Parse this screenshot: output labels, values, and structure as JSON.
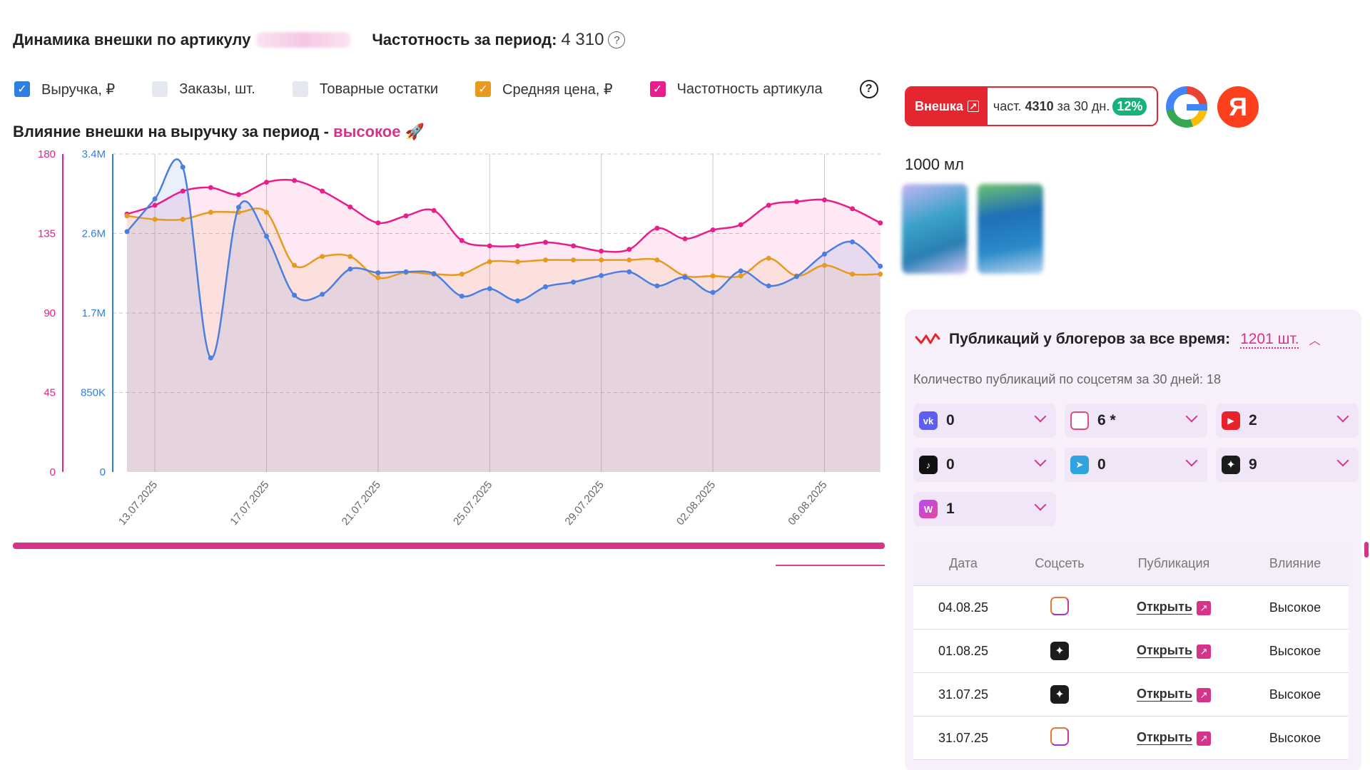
{
  "header": {
    "title": "Динамика внешки по артикулу",
    "freq_label": "Частотность за период:",
    "freq_value": "4 310"
  },
  "legend": {
    "items": [
      {
        "label": "Выручка, ₽",
        "checked": true,
        "color": "#2f7fe3"
      },
      {
        "label": "Заказы, шт.",
        "checked": false,
        "color": "#e6e8f0"
      },
      {
        "label": "Товарные остатки",
        "checked": false,
        "color": "#e6e8f0"
      },
      {
        "label": "Средняя цена, ₽",
        "checked": true,
        "color": "#e89a1f"
      },
      {
        "label": "Частотность артикула",
        "checked": true,
        "color": "#e81f8a"
      }
    ]
  },
  "influence": {
    "prefix": "Влияние внешки на выручку за период -",
    "level": "высокое",
    "emoji": "🚀"
  },
  "chart_data": {
    "type": "line",
    "x": [
      "12.07.2025",
      "13.07.2025",
      "14.07.2025",
      "15.07.2025",
      "16.07.2025",
      "17.07.2025",
      "18.07.2025",
      "19.07.2025",
      "20.07.2025",
      "21.07.2025",
      "22.07.2025",
      "23.07.2025",
      "24.07.2025",
      "25.07.2025",
      "26.07.2025",
      "27.07.2025",
      "28.07.2025",
      "29.07.2025",
      "30.07.2025",
      "31.07.2025",
      "01.08.2025",
      "02.08.2025",
      "03.08.2025",
      "04.08.2025",
      "05.08.2025",
      "06.08.2025",
      "07.08.2025",
      "08.08.2025"
    ],
    "x_tick_labels": [
      "13.07.2025",
      "17.07.2025",
      "21.07.2025",
      "25.07.2025",
      "29.07.2025",
      "02.08.2025",
      "06.08.2025"
    ],
    "left_axis": {
      "ticks": [
        "0",
        "45",
        "90",
        "135",
        "180"
      ],
      "range": [
        0,
        180
      ],
      "color": "#e81f8a"
    },
    "right_axis": {
      "ticks": [
        "0",
        "850K",
        "1.7M",
        "2.6M",
        "3.4M"
      ],
      "range": [
        0,
        3400000
      ],
      "color": "#2f7fe3"
    },
    "grid": true,
    "series": [
      {
        "name": "Выручка, ₽",
        "axis": "right",
        "color": "#4a7fe0",
        "values": [
          2570000,
          2920000,
          3260000,
          1220000,
          2830000,
          2520000,
          1890000,
          1900000,
          2170000,
          2130000,
          2140000,
          2120000,
          1880000,
          1960000,
          1830000,
          1980000,
          2030000,
          2100000,
          2140000,
          1990000,
          2080000,
          1920000,
          2150000,
          1990000,
          2090000,
          2330000,
          2460000,
          2200000
        ]
      },
      {
        "name": "Средняя цена, ₽",
        "axis": "left",
        "color": "#e89a1f",
        "values": [
          145,
          143,
          143,
          147,
          147,
          147,
          117,
          122,
          122,
          110,
          113,
          112,
          112,
          119,
          119,
          120,
          120,
          120,
          120,
          120,
          111,
          111,
          111,
          121,
          111,
          117,
          112,
          112
        ]
      },
      {
        "name": "Частотность артикула",
        "axis": "left",
        "color": "#e81f8a",
        "values": [
          146,
          151,
          159,
          161,
          157,
          164,
          165,
          159,
          150,
          141,
          145,
          148,
          131,
          128,
          128,
          130,
          128,
          125,
          126,
          138,
          132,
          137,
          140,
          151,
          153,
          154,
          149,
          141
        ]
      }
    ]
  },
  "ext_badge": {
    "label": "Внешка",
    "freq_prefix": "част.",
    "freq_value": "4310",
    "freq_suffix": "за 30 дн.",
    "pct": "12%"
  },
  "search_engines": [
    "google-icon",
    "yandex-icon"
  ],
  "yandex_letter": "Я",
  "product": {
    "volume": "1000 мл"
  },
  "pubs": {
    "title": "Публикаций у блогеров за все время:",
    "count": "1201 шт.",
    "subtitle": "Количество публикаций по соцсетям за 30 дней: 18",
    "socials": [
      {
        "icon": "vk-icon",
        "glyph": "vk",
        "count": "0"
      },
      {
        "icon": "instagram-icon",
        "glyph": "",
        "count": "6 *"
      },
      {
        "icon": "youtube-icon",
        "glyph": "▶",
        "count": "2"
      },
      {
        "icon": "tiktok-icon",
        "glyph": "♪",
        "count": "0"
      },
      {
        "icon": "telegram-icon",
        "glyph": "➤",
        "count": "0"
      },
      {
        "icon": "dzen-icon",
        "glyph": "✦",
        "count": "9"
      },
      {
        "icon": "wb-icon",
        "glyph": "W",
        "count": "1"
      }
    ],
    "table": {
      "headers": [
        "Дата",
        "Соцсеть",
        "Публикация",
        "Влияние"
      ],
      "rows": [
        {
          "date": "04.08.25",
          "social": "instagram",
          "link": "Открыть",
          "impact": "Высокое"
        },
        {
          "date": "01.08.25",
          "social": "dzen",
          "link": "Открыть",
          "impact": "Высокое"
        },
        {
          "date": "31.07.25",
          "social": "dzen",
          "link": "Открыть",
          "impact": "Высокое"
        },
        {
          "date": "31.07.25",
          "social": "instagram",
          "link": "Открыть",
          "impact": "Высокое"
        }
      ]
    }
  }
}
